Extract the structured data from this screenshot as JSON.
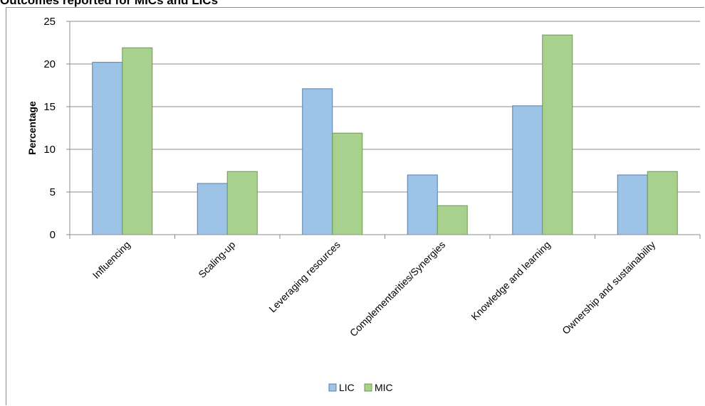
{
  "chart_data": {
    "type": "bar",
    "title": "Outcomes reported for MICs and LICs",
    "ylabel": "Percentage",
    "xlabel": "",
    "ylim": [
      0,
      25
    ],
    "yticks": [
      0,
      5,
      10,
      15,
      20,
      25
    ],
    "grid": true,
    "legend_position": "bottom",
    "categories": [
      "Influencing",
      "Scaling-up",
      "Leveraging resources",
      "Complementarities/Synergies",
      "Knowledge and learning",
      "Ownership and sustainability"
    ],
    "series": [
      {
        "name": "LIC",
        "color": "#9dc3e6",
        "values": [
          20.2,
          6.0,
          17.1,
          7.0,
          15.1,
          7.0
        ]
      },
      {
        "name": "MIC",
        "color": "#a9d18e",
        "values": [
          21.9,
          7.4,
          11.9,
          3.4,
          23.4,
          7.4
        ]
      }
    ]
  }
}
